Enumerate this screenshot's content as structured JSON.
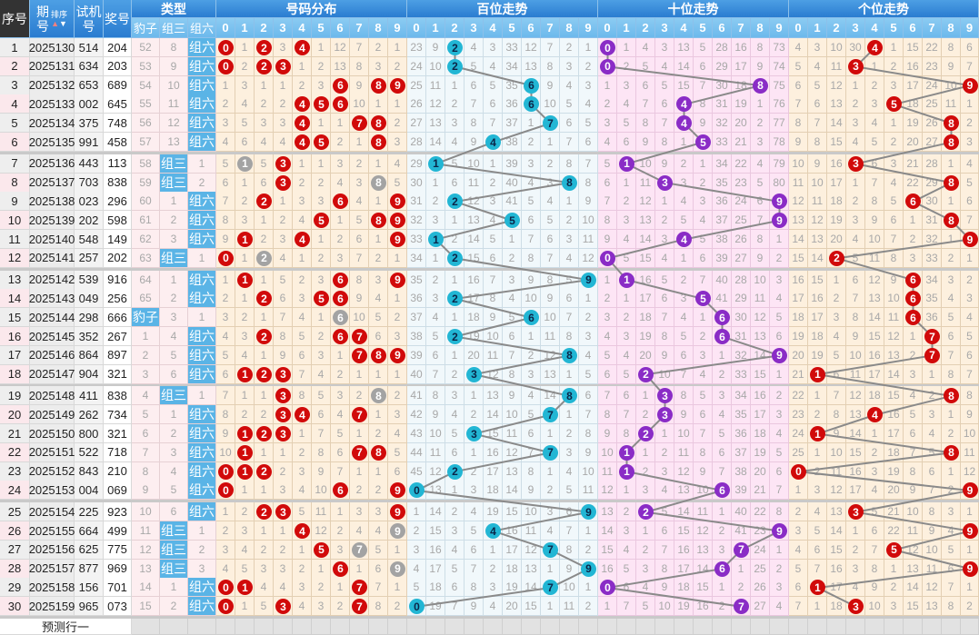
{
  "header": {
    "seq": "序号",
    "issue_a": "期",
    "issue_b": "号",
    "sort": "排序",
    "trial_a": "试机",
    "trial_b": "号",
    "draw": "奖号",
    "type": "类型",
    "type_cols": [
      "豹子",
      "组三",
      "组六"
    ],
    "dist": "号码分布",
    "hundreds": "百位走势",
    "tens": "十位走势",
    "units": "个位走势",
    "digits": [
      "0",
      "1",
      "2",
      "3",
      "4",
      "5",
      "6",
      "7",
      "8",
      "9"
    ]
  },
  "rows": [
    {
      "seq": "1",
      "issue": "2025130",
      "trial": "514",
      "draw": "204"
    },
    {
      "seq": "2",
      "issue": "2025131",
      "trial": "634",
      "draw": "203"
    },
    {
      "seq": "3",
      "issue": "2025132",
      "trial": "653",
      "draw": "689"
    },
    {
      "seq": "4",
      "issue": "2025133",
      "trial": "002",
      "draw": "645"
    },
    {
      "seq": "5",
      "issue": "2025134",
      "trial": "375",
      "draw": "748"
    },
    {
      "seq": "6",
      "issue": "2025135",
      "trial": "991",
      "draw": "458"
    },
    {
      "seq": "7",
      "issue": "2025136",
      "trial": "443",
      "draw": "113"
    },
    {
      "seq": "8",
      "issue": "2025137",
      "trial": "703",
      "draw": "838"
    },
    {
      "seq": "9",
      "issue": "2025138",
      "trial": "023",
      "draw": "296"
    },
    {
      "seq": "10",
      "issue": "2025139",
      "trial": "202",
      "draw": "598"
    },
    {
      "seq": "11",
      "issue": "2025140",
      "trial": "548",
      "draw": "149"
    },
    {
      "seq": "12",
      "issue": "2025141",
      "trial": "257",
      "draw": "202"
    },
    {
      "seq": "13",
      "issue": "2025142",
      "trial": "539",
      "draw": "916"
    },
    {
      "seq": "14",
      "issue": "2025143",
      "trial": "049",
      "draw": "256"
    },
    {
      "seq": "15",
      "issue": "2025144",
      "trial": "298",
      "draw": "666"
    },
    {
      "seq": "16",
      "issue": "2025145",
      "trial": "352",
      "draw": "267"
    },
    {
      "seq": "17",
      "issue": "2025146",
      "trial": "864",
      "draw": "897"
    },
    {
      "seq": "18",
      "issue": "2025147",
      "trial": "904",
      "draw": "321"
    },
    {
      "seq": "19",
      "issue": "2025148",
      "trial": "411",
      "draw": "838"
    },
    {
      "seq": "20",
      "issue": "2025149",
      "trial": "262",
      "draw": "734"
    },
    {
      "seq": "21",
      "issue": "2025150",
      "trial": "800",
      "draw": "321"
    },
    {
      "seq": "22",
      "issue": "2025151",
      "trial": "522",
      "draw": "718"
    },
    {
      "seq": "23",
      "issue": "2025152",
      "trial": "843",
      "draw": "210"
    },
    {
      "seq": "24",
      "issue": "2025153",
      "trial": "004",
      "draw": "069"
    },
    {
      "seq": "25",
      "issue": "2025154",
      "trial": "225",
      "draw": "923"
    },
    {
      "seq": "26",
      "issue": "2025155",
      "trial": "664",
      "draw": "499"
    },
    {
      "seq": "27",
      "issue": "2025156",
      "trial": "625",
      "draw": "775"
    },
    {
      "seq": "28",
      "issue": "2025157",
      "trial": "877",
      "draw": "969"
    },
    {
      "seq": "29",
      "issue": "2025158",
      "trial": "156",
      "draw": "701"
    },
    {
      "seq": "30",
      "issue": "2025159",
      "trial": "965",
      "draw": "073"
    }
  ],
  "first_row_omission": {
    "type": [
      52,
      8,
      0
    ],
    "dist": [
      0,
      1,
      0,
      3,
      0,
      1,
      12,
      7,
      2,
      1
    ],
    "hundreds": [
      23,
      9,
      0,
      4,
      3,
      33,
      12,
      7,
      2,
      1
    ],
    "tens": [
      0,
      1,
      4,
      3,
      13,
      5,
      28,
      16,
      8,
      73
    ],
    "units": [
      4,
      3,
      10,
      30,
      0,
      1,
      15,
      22,
      8,
      6
    ]
  },
  "predict_label": "预测行一",
  "colors": {
    "dist_ball": "#d10a0a",
    "repeat_ball": "#a3a3a3",
    "hundreds_ball": "#22b6d4",
    "tens_ball": "#8a2cc6",
    "units_ball": "#d10a0a",
    "type_hit": "#5ab4e6",
    "dist_bg": "#fdf0de",
    "hundreds_bg": "#f1f8fb",
    "tens_bg": "#fde5f5",
    "units_bg": "#fdf0de",
    "line": "#8a8a8a"
  }
}
